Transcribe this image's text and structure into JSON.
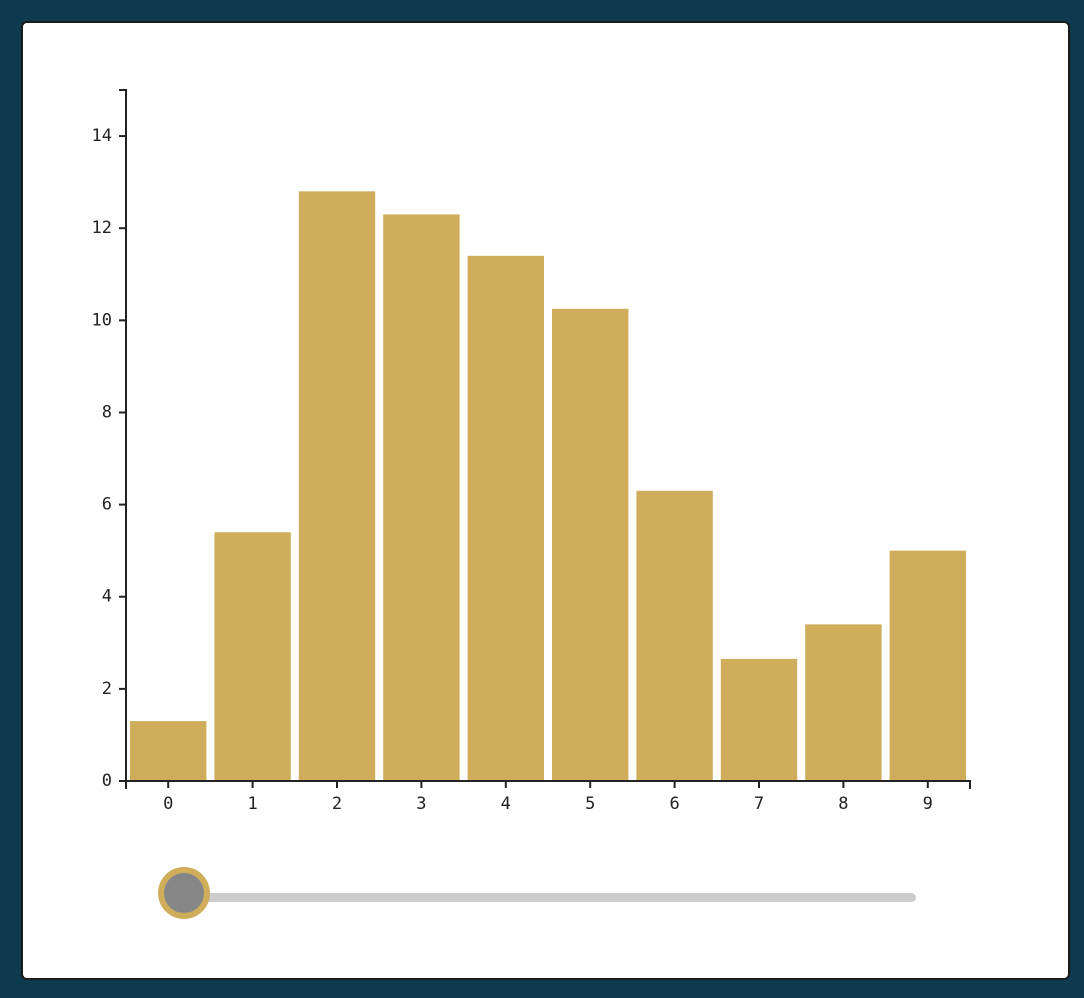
{
  "chart_data": {
    "type": "bar",
    "categories": [
      "0",
      "1",
      "2",
      "3",
      "4",
      "5",
      "6",
      "7",
      "8",
      "9"
    ],
    "values": [
      1.3,
      5.4,
      12.8,
      12.3,
      11.4,
      10.25,
      6.3,
      2.65,
      3.4,
      5.0
    ],
    "ylim": [
      0,
      15
    ],
    "yticks": [
      "0",
      "2",
      "4",
      "6",
      "8",
      "10",
      "12",
      "14"
    ],
    "ytick_values": [
      0,
      2,
      4,
      6,
      8,
      10,
      12,
      14
    ],
    "grid": false,
    "bar_color": "#cfad5b"
  },
  "slider": {
    "value_fraction": 0
  },
  "colors": {
    "background": "#0e3a4f",
    "card": "#ffffff",
    "thumb": "#868686",
    "track": "#cccccc"
  }
}
